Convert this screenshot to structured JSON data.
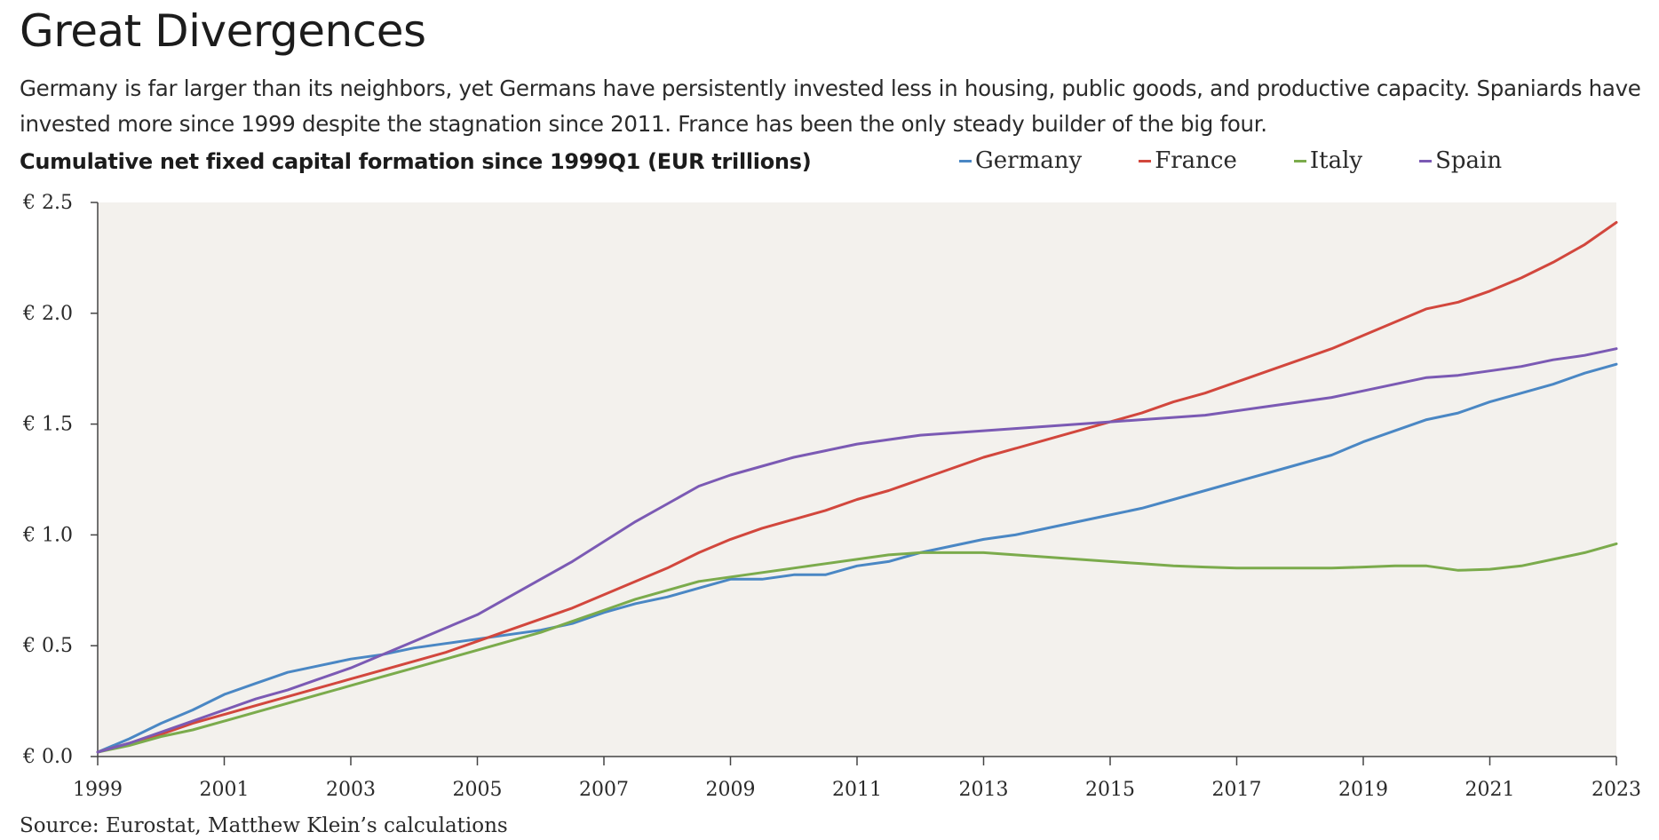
{
  "title": "Great Divergences",
  "subtitle": "Germany is far larger than its neighbors, yet Germans have persistently invested less in housing, public goods, and productive capacity. Spaniards have invested more since 1999 despite the stagnation since 2011. France has been the only steady builder of the big four.",
  "source": "Source: Eurostat, Matthew Klein’s calculations",
  "chart_data": {
    "type": "line",
    "title": "Cumulative net fixed capital formation since 1999Q1 (EUR trillions)",
    "xlabel": "",
    "ylabel": "",
    "xlim": [
      1999,
      2023
    ],
    "ylim": [
      0,
      2.5
    ],
    "x_ticks": [
      "1999",
      "2001",
      "2003",
      "2005",
      "2007",
      "2009",
      "2011",
      "2013",
      "2015",
      "2017",
      "2019",
      "2021",
      "2023"
    ],
    "y_ticks": [
      "€ 0.0",
      "€ 0.5",
      "€ 1.0",
      "€ 1.5",
      "€ 2.0",
      "€ 2.5"
    ],
    "y_tick_values": [
      0,
      0.5,
      1.0,
      1.5,
      2.0,
      2.5
    ],
    "grid": false,
    "legend": "top",
    "x": [
      1999,
      1999.5,
      2000,
      2000.5,
      2001,
      2001.5,
      2002,
      2002.5,
      2003,
      2003.5,
      2004,
      2004.5,
      2005,
      2005.5,
      2006,
      2006.5,
      2007,
      2007.5,
      2008,
      2008.5,
      2009,
      2009.5,
      2010,
      2010.5,
      2011,
      2011.5,
      2012,
      2012.5,
      2013,
      2013.5,
      2014,
      2014.5,
      2015,
      2015.5,
      2016,
      2016.5,
      2017,
      2017.5,
      2018,
      2018.5,
      2019,
      2019.5,
      2020,
      2020.5,
      2021,
      2021.5,
      2022,
      2022.5,
      2023
    ],
    "series": [
      {
        "name": "Germany",
        "color": "#4a87c4",
        "values": [
          0.02,
          0.08,
          0.15,
          0.21,
          0.28,
          0.33,
          0.38,
          0.41,
          0.44,
          0.46,
          0.49,
          0.51,
          0.53,
          0.55,
          0.57,
          0.6,
          0.65,
          0.69,
          0.72,
          0.76,
          0.8,
          0.8,
          0.82,
          0.82,
          0.86,
          0.88,
          0.92,
          0.95,
          0.98,
          1.0,
          1.03,
          1.06,
          1.09,
          1.12,
          1.16,
          1.2,
          1.24,
          1.28,
          1.32,
          1.36,
          1.42,
          1.47,
          1.52,
          1.55,
          1.6,
          1.64,
          1.68,
          1.73,
          1.77
        ]
      },
      {
        "name": "France",
        "color": "#d2473d",
        "values": [
          0.02,
          0.06,
          0.1,
          0.15,
          0.19,
          0.23,
          0.27,
          0.31,
          0.35,
          0.39,
          0.43,
          0.47,
          0.52,
          0.57,
          0.62,
          0.67,
          0.73,
          0.79,
          0.85,
          0.92,
          0.98,
          1.03,
          1.07,
          1.11,
          1.16,
          1.2,
          1.25,
          1.3,
          1.35,
          1.39,
          1.43,
          1.47,
          1.51,
          1.55,
          1.6,
          1.64,
          1.69,
          1.74,
          1.79,
          1.84,
          1.9,
          1.96,
          2.02,
          2.05,
          2.1,
          2.16,
          2.23,
          2.31,
          2.41
        ]
      },
      {
        "name": "Italy",
        "color": "#7bab4c",
        "values": [
          0.02,
          0.05,
          0.09,
          0.12,
          0.16,
          0.2,
          0.24,
          0.28,
          0.32,
          0.36,
          0.4,
          0.44,
          0.48,
          0.52,
          0.56,
          0.61,
          0.66,
          0.71,
          0.75,
          0.79,
          0.81,
          0.83,
          0.85,
          0.87,
          0.89,
          0.91,
          0.92,
          0.92,
          0.92,
          0.91,
          0.9,
          0.89,
          0.88,
          0.87,
          0.86,
          0.855,
          0.85,
          0.85,
          0.85,
          0.85,
          0.855,
          0.86,
          0.86,
          0.84,
          0.845,
          0.86,
          0.89,
          0.92,
          0.96
        ]
      },
      {
        "name": "Spain",
        "color": "#7b5ab4",
        "values": [
          0.02,
          0.06,
          0.11,
          0.16,
          0.21,
          0.26,
          0.3,
          0.35,
          0.4,
          0.46,
          0.52,
          0.58,
          0.64,
          0.72,
          0.8,
          0.88,
          0.97,
          1.06,
          1.14,
          1.22,
          1.27,
          1.31,
          1.35,
          1.38,
          1.41,
          1.43,
          1.45,
          1.46,
          1.47,
          1.48,
          1.49,
          1.5,
          1.51,
          1.52,
          1.53,
          1.54,
          1.56,
          1.58,
          1.6,
          1.62,
          1.65,
          1.68,
          1.71,
          1.72,
          1.74,
          1.76,
          1.79,
          1.81,
          1.84
        ]
      }
    ]
  }
}
